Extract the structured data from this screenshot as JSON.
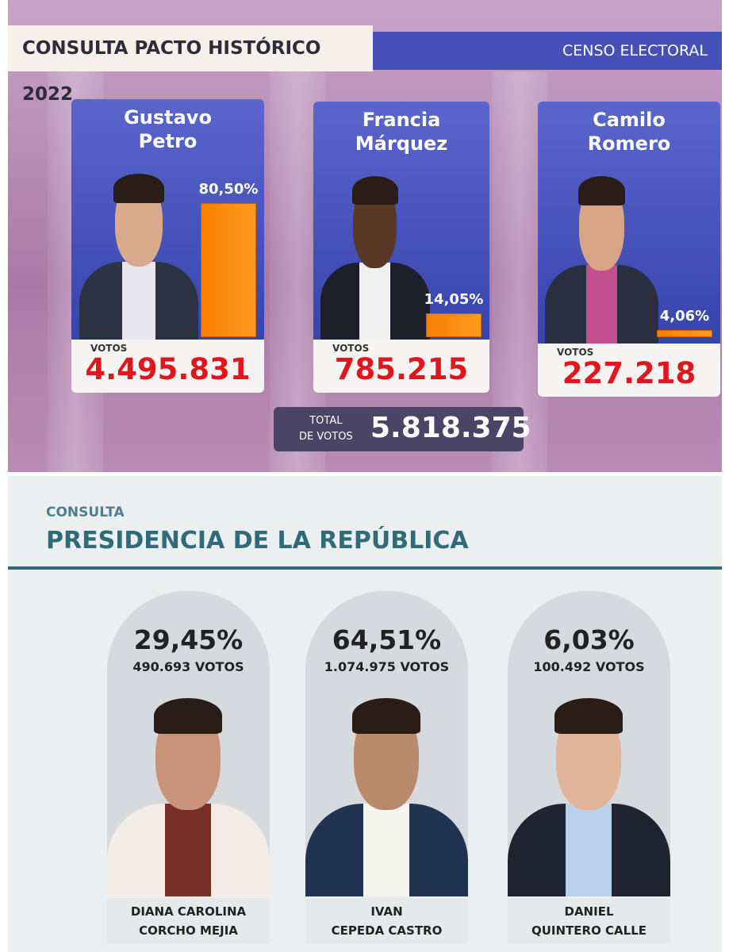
{
  "top": {
    "title": "CONSULTA PACTO HISTÓRICO 2022",
    "badge": "CENSO ELECTORAL",
    "candidates": [
      {
        "name_lines": [
          "Gustavo",
          "Petro"
        ],
        "percent": {
          "value": 80.5,
          "label": "80,50%"
        },
        "votes_label": "VOTOS",
        "votes": "4.495.831"
      },
      {
        "name_lines": [
          "Francia",
          "Márquez"
        ],
        "percent": {
          "value": 14.05,
          "label": "14,05%"
        },
        "votes_label": "VOTOS",
        "votes": "785.215"
      },
      {
        "name_lines": [
          "Camilo",
          "Romero"
        ],
        "percent": {
          "value": 4.06,
          "label": "4,06%"
        },
        "votes_label": "VOTOS",
        "votes": "227.218"
      }
    ],
    "total_label_lines": [
      "TOTAL",
      "DE VOTOS"
    ],
    "total": "5.818.375"
  },
  "bottom": {
    "kicker": "CONSULTA",
    "title": "PRESIDENCIA DE LA REPÚBLICA",
    "candidates": [
      {
        "percent": "29,45%",
        "votes": "490.693 VOTOS",
        "name_lines": [
          "DIANA CAROLINA",
          "CORCHO MEJIA"
        ]
      },
      {
        "percent": "64,51%",
        "votes": "1.074.975 VOTOS",
        "name_lines": [
          "IVAN",
          "CEPEDA CASTRO"
        ]
      },
      {
        "percent": "6,03%",
        "votes": "100.492 VOTOS",
        "name_lines": [
          "DANIEL",
          "QUINTERO CALLE"
        ]
      }
    ]
  }
}
